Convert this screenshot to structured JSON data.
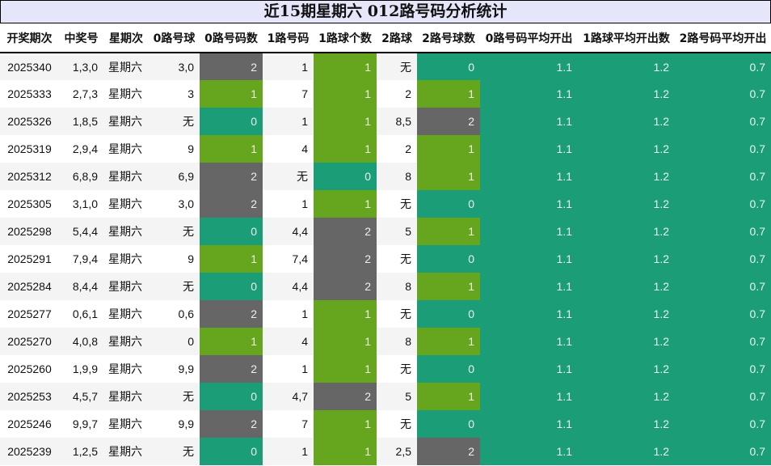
{
  "title": "近15期星期六 012路号码分析统计",
  "headers": [
    "开奖期次",
    "中奖号",
    "星期次",
    "0路号球",
    "0路号码数",
    "1路号码",
    "1路球个数",
    "2路球",
    "2路号球数",
    "0路号码平均开出",
    "1路球平均开出数",
    "2路号码平均开出"
  ],
  "colors": {
    "count0": "#1b9e77",
    "count1": "#66a61e",
    "count2": "#666666",
    "title_bg": "#e6e6fa"
  },
  "rows": [
    {
      "period": "2025340",
      "numbers": "1,3,0",
      "weekday": "星期六",
      "r0_balls": "3,0",
      "r0_count": "2",
      "r1_balls": "1",
      "r1_count": "1",
      "r2_balls": "无",
      "r2_count": "0",
      "avg0": "1.1",
      "avg1": "1.2",
      "avg2": "0.7"
    },
    {
      "period": "2025333",
      "numbers": "2,7,3",
      "weekday": "星期六",
      "r0_balls": "3",
      "r0_count": "1",
      "r1_balls": "7",
      "r1_count": "1",
      "r2_balls": "2",
      "r2_count": "1",
      "avg0": "1.1",
      "avg1": "1.2",
      "avg2": "0.7"
    },
    {
      "period": "2025326",
      "numbers": "1,8,5",
      "weekday": "星期六",
      "r0_balls": "无",
      "r0_count": "0",
      "r1_balls": "1",
      "r1_count": "1",
      "r2_balls": "8,5",
      "r2_count": "2",
      "avg0": "1.1",
      "avg1": "1.2",
      "avg2": "0.7"
    },
    {
      "period": "2025319",
      "numbers": "2,9,4",
      "weekday": "星期六",
      "r0_balls": "9",
      "r0_count": "1",
      "r1_balls": "4",
      "r1_count": "1",
      "r2_balls": "2",
      "r2_count": "1",
      "avg0": "1.1",
      "avg1": "1.2",
      "avg2": "0.7"
    },
    {
      "period": "2025312",
      "numbers": "6,8,9",
      "weekday": "星期六",
      "r0_balls": "6,9",
      "r0_count": "2",
      "r1_balls": "无",
      "r1_count": "0",
      "r2_balls": "8",
      "r2_count": "1",
      "avg0": "1.1",
      "avg1": "1.2",
      "avg2": "0.7"
    },
    {
      "period": "2025305",
      "numbers": "3,1,0",
      "weekday": "星期六",
      "r0_balls": "3,0",
      "r0_count": "2",
      "r1_balls": "1",
      "r1_count": "1",
      "r2_balls": "无",
      "r2_count": "0",
      "avg0": "1.1",
      "avg1": "1.2",
      "avg2": "0.7"
    },
    {
      "period": "2025298",
      "numbers": "5,4,4",
      "weekday": "星期六",
      "r0_balls": "无",
      "r0_count": "0",
      "r1_balls": "4,4",
      "r1_count": "2",
      "r2_balls": "5",
      "r2_count": "1",
      "avg0": "1.1",
      "avg1": "1.2",
      "avg2": "0.7"
    },
    {
      "period": "2025291",
      "numbers": "7,9,4",
      "weekday": "星期六",
      "r0_balls": "9",
      "r0_count": "1",
      "r1_balls": "7,4",
      "r1_count": "2",
      "r2_balls": "无",
      "r2_count": "0",
      "avg0": "1.1",
      "avg1": "1.2",
      "avg2": "0.7"
    },
    {
      "period": "2025284",
      "numbers": "8,4,4",
      "weekday": "星期六",
      "r0_balls": "无",
      "r0_count": "0",
      "r1_balls": "4,4",
      "r1_count": "2",
      "r2_balls": "8",
      "r2_count": "1",
      "avg0": "1.1",
      "avg1": "1.2",
      "avg2": "0.7"
    },
    {
      "period": "2025277",
      "numbers": "0,6,1",
      "weekday": "星期六",
      "r0_balls": "0,6",
      "r0_count": "2",
      "r1_balls": "1",
      "r1_count": "1",
      "r2_balls": "无",
      "r2_count": "0",
      "avg0": "1.1",
      "avg1": "1.2",
      "avg2": "0.7"
    },
    {
      "period": "2025270",
      "numbers": "4,0,8",
      "weekday": "星期六",
      "r0_balls": "0",
      "r0_count": "1",
      "r1_balls": "4",
      "r1_count": "1",
      "r2_balls": "8",
      "r2_count": "1",
      "avg0": "1.1",
      "avg1": "1.2",
      "avg2": "0.7"
    },
    {
      "period": "2025260",
      "numbers": "1,9,9",
      "weekday": "星期六",
      "r0_balls": "9,9",
      "r0_count": "2",
      "r1_balls": "1",
      "r1_count": "1",
      "r2_balls": "无",
      "r2_count": "0",
      "avg0": "1.1",
      "avg1": "1.2",
      "avg2": "0.7"
    },
    {
      "period": "2025253",
      "numbers": "4,5,7",
      "weekday": "星期六",
      "r0_balls": "无",
      "r0_count": "0",
      "r1_balls": "4,7",
      "r1_count": "2",
      "r2_balls": "5",
      "r2_count": "1",
      "avg0": "1.1",
      "avg1": "1.2",
      "avg2": "0.7"
    },
    {
      "period": "2025246",
      "numbers": "9,9,7",
      "weekday": "星期六",
      "r0_balls": "9,9",
      "r0_count": "2",
      "r1_balls": "7",
      "r1_count": "1",
      "r2_balls": "无",
      "r2_count": "0",
      "avg0": "1.1",
      "avg1": "1.2",
      "avg2": "0.7"
    },
    {
      "period": "2025239",
      "numbers": "1,2,5",
      "weekday": "星期六",
      "r0_balls": "无",
      "r0_count": "0",
      "r1_balls": "1",
      "r1_count": "1",
      "r2_balls": "2,5",
      "r2_count": "2",
      "avg0": "1.1",
      "avg1": "1.2",
      "avg2": "0.7"
    }
  ]
}
